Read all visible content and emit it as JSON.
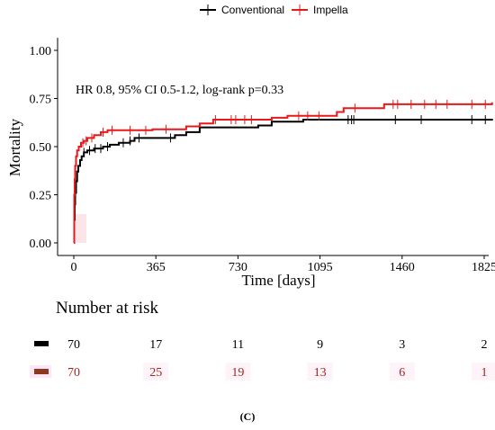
{
  "chart_data": {
    "type": "line",
    "title": "",
    "xlabel": "Time [days]",
    "ylabel": "Mortality",
    "xlim": [
      0,
      1860
    ],
    "ylim": [
      0,
      1.0
    ],
    "x_ticks": [
      0,
      365,
      730,
      1095,
      1460,
      1825
    ],
    "x_tick_labels": [
      "0",
      "365",
      "730",
      "1095",
      "1460",
      "1825"
    ],
    "y_ticks": [
      0,
      0.25,
      0.5,
      0.75,
      1.0
    ],
    "y_tick_labels": [
      "0.00",
      "0.25",
      "0.50",
      "0.75",
      "1.00"
    ],
    "legend_position": "top-center",
    "annotation": "HR 0.8, 95% CI 0.5-1.2, log-rank p=0.33",
    "series": [
      {
        "name": "Conventional",
        "color": "#000000",
        "points": [
          [
            0,
            0
          ],
          [
            2,
            0.12
          ],
          [
            4,
            0.2
          ],
          [
            6,
            0.26
          ],
          [
            10,
            0.32
          ],
          [
            15,
            0.37
          ],
          [
            20,
            0.4
          ],
          [
            28,
            0.43
          ],
          [
            35,
            0.45
          ],
          [
            45,
            0.47
          ],
          [
            60,
            0.48
          ],
          [
            90,
            0.49
          ],
          [
            130,
            0.5
          ],
          [
            160,
            0.51
          ],
          [
            200,
            0.52
          ],
          [
            250,
            0.53
          ],
          [
            270,
            0.545
          ],
          [
            400,
            0.545
          ],
          [
            450,
            0.56
          ],
          [
            500,
            0.575
          ],
          [
            560,
            0.6
          ],
          [
            820,
            0.61
          ],
          [
            880,
            0.63
          ],
          [
            1020,
            0.64
          ],
          [
            1860,
            0.645
          ]
        ],
        "censor_x": [
          45,
          70,
          95,
          120,
          150,
          220,
          250,
          290,
          430,
          1220,
          1235,
          1245,
          1430,
          1545,
          1770,
          1830
        ]
      },
      {
        "name": "Impella",
        "color": "#e8191b",
        "points": [
          [
            0,
            0
          ],
          [
            2,
            0.25
          ],
          [
            4,
            0.33
          ],
          [
            6,
            0.4
          ],
          [
            10,
            0.45
          ],
          [
            15,
            0.48
          ],
          [
            22,
            0.5
          ],
          [
            32,
            0.52
          ],
          [
            45,
            0.53
          ],
          [
            60,
            0.545
          ],
          [
            90,
            0.56
          ],
          [
            120,
            0.575
          ],
          [
            150,
            0.585
          ],
          [
            350,
            0.59
          ],
          [
            500,
            0.605
          ],
          [
            560,
            0.62
          ],
          [
            620,
            0.64
          ],
          [
            880,
            0.65
          ],
          [
            950,
            0.66
          ],
          [
            1170,
            0.68
          ],
          [
            1200,
            0.7
          ],
          [
            1380,
            0.72
          ],
          [
            1860,
            0.73
          ]
        ],
        "censor_x": [
          40,
          55,
          80,
          130,
          170,
          250,
          320,
          410,
          630,
          700,
          720,
          760,
          790,
          1000,
          1040,
          1090,
          1250,
          1420,
          1440,
          1500,
          1560,
          1610,
          1660,
          1770,
          1830
        ]
      }
    ]
  },
  "risk_table": {
    "title": "Number at risk",
    "rows": [
      {
        "color": "#000000",
        "text_color": "#000000",
        "values": [
          "70",
          "17",
          "11",
          "9",
          "3",
          "2"
        ]
      },
      {
        "color": "#8b3a1f",
        "text_color": "#a0281f",
        "values": [
          "70",
          "25",
          "19",
          "13",
          "6",
          "1"
        ]
      }
    ]
  },
  "panel_label": "(C)"
}
